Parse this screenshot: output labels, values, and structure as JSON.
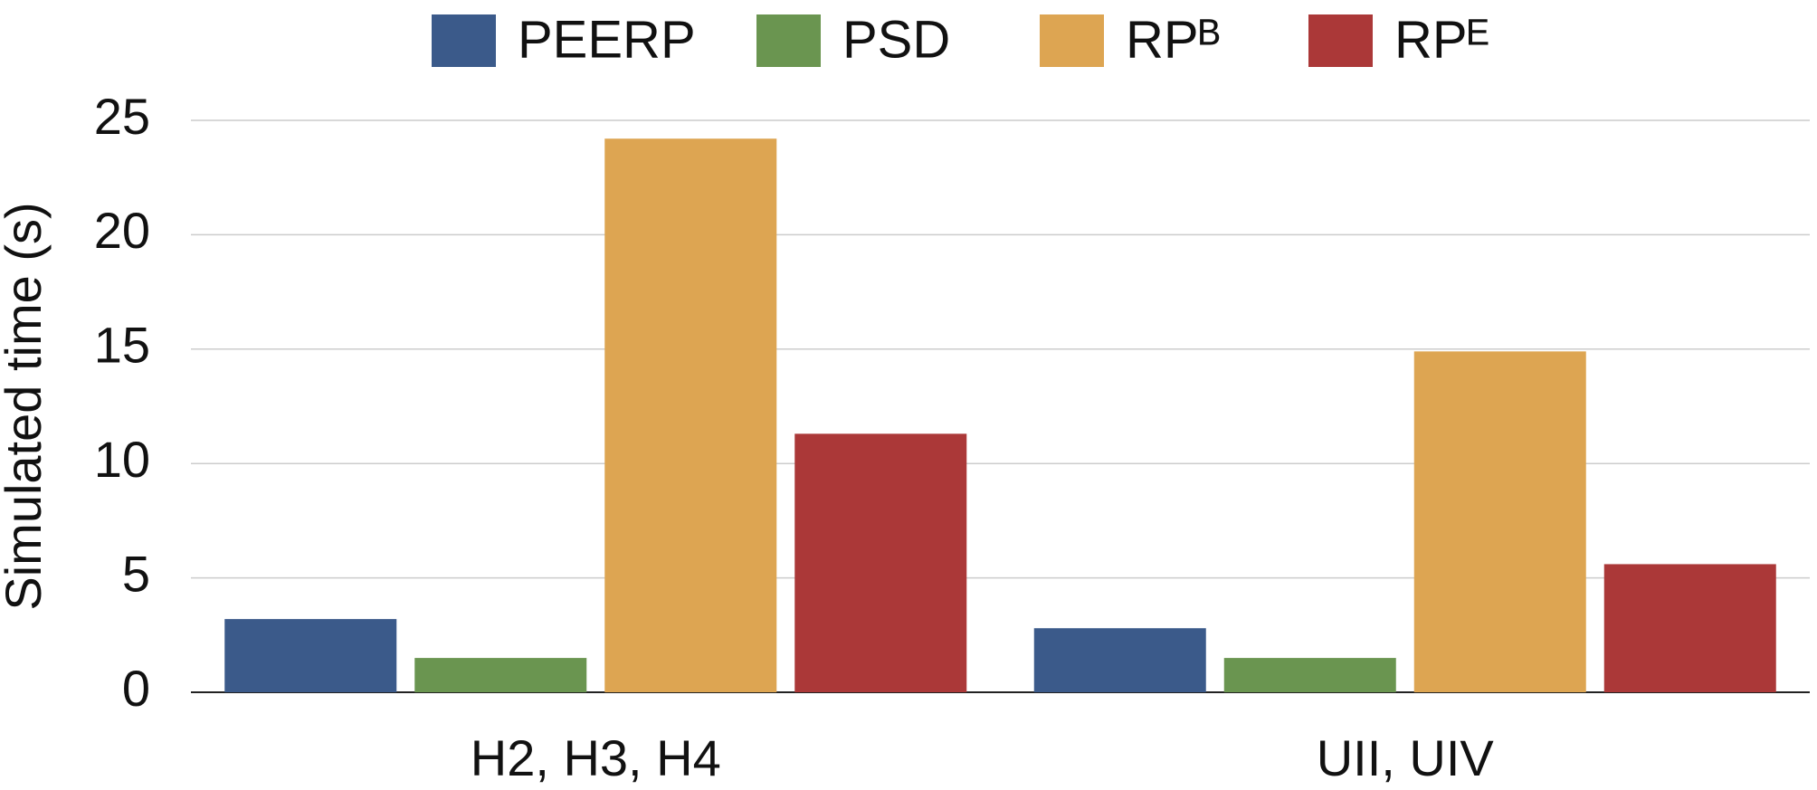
{
  "chart_data": {
    "type": "bar",
    "y_label": "Simulated time (s)",
    "categories": [
      "H2, H3, H4",
      "UII, UIV"
    ],
    "series": [
      {
        "name": "PEERP",
        "color": "#3b5a8a",
        "values": [
          3.2,
          2.8
        ]
      },
      {
        "name": "PSD",
        "color": "#6a9550",
        "values": [
          1.5,
          1.5
        ]
      },
      {
        "name": "RPᴮ",
        "color": "#dda552",
        "values": [
          24.2,
          14.9
        ]
      },
      {
        "name": "RPᴱ",
        "color": "#ab3838",
        "values": [
          11.3,
          5.6
        ]
      }
    ],
    "ylim": [
      0,
      25
    ],
    "yticks": [
      0,
      5,
      10,
      15,
      20,
      25
    ],
    "grid": true,
    "legend": "top"
  }
}
